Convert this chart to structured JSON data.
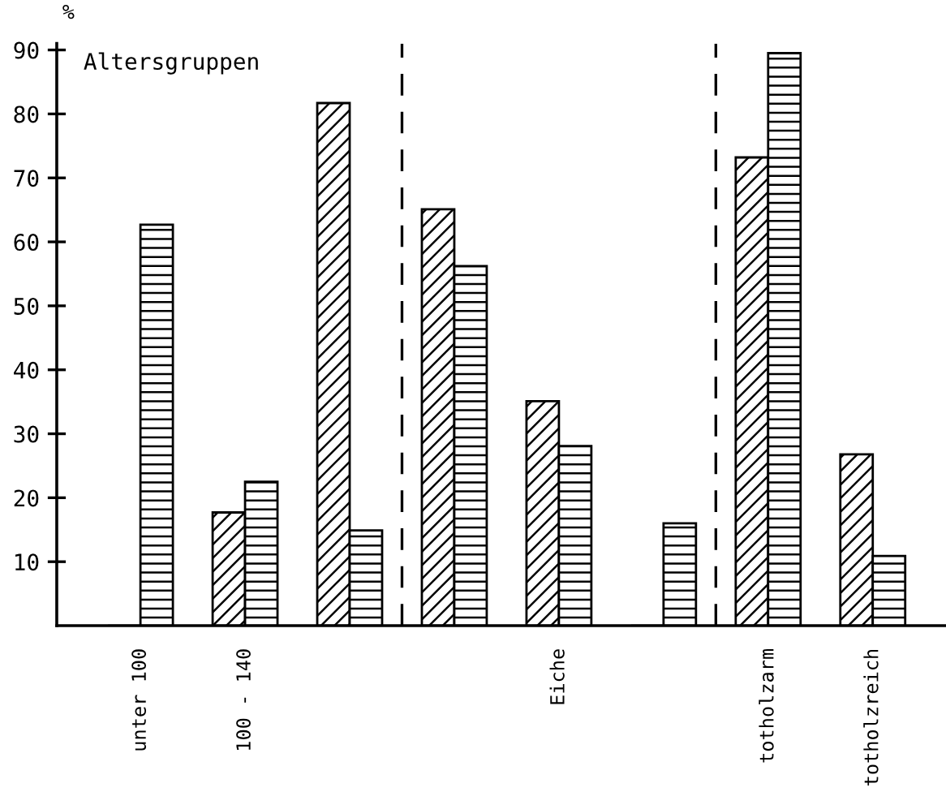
{
  "chart_data": {
    "type": "bar",
    "ylabel": "%",
    "categories": [
      "unter 100",
      "100 - 140",
      null,
      null,
      "Eiche",
      null,
      "totholzarm",
      "totholzreich"
    ],
    "series": [
      {
        "color": "#000000",
        "values": [
          0,
          17.7,
          81.7,
          65.1,
          35.1,
          0,
          73.2,
          26.8
        ]
      },
      {
        "color": "#000000",
        "values": [
          62.7,
          22.5,
          14.9,
          56.2,
          28.1,
          16.0,
          89.5,
          10.9
        ]
      }
    ],
    "ylim": [
      0,
      91
    ],
    "yticks": [
      10,
      20,
      30,
      40,
      50,
      60,
      70,
      80,
      90
    ],
    "annotations": [
      "Altersgruppen"
    ],
    "grid": false,
    "legend": false
  }
}
